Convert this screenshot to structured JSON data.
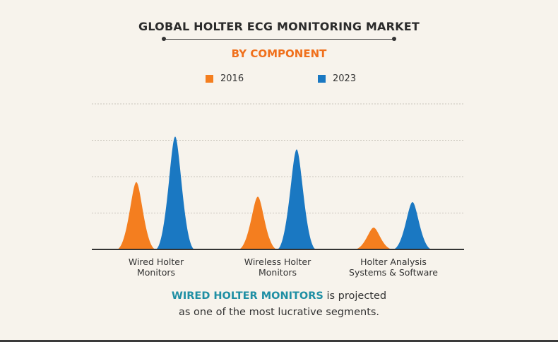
{
  "title": "GLOBAL HOLTER ECG MONITORING MARKET",
  "subtitle": "BY COMPONENT",
  "footer": {
    "highlight": "WIRED HOLTER MONITORS",
    "line1_rest": " is projected",
    "line2": "as one of the most lucrative segments."
  },
  "colors": {
    "orange": "#f47e1f",
    "blue": "#1a78c2",
    "highlight": "#1f8fa4",
    "subtitle": "#f0701c"
  },
  "chart_data": {
    "type": "area",
    "categories": [
      [
        "Wired Holter",
        "Monitors"
      ],
      [
        "Wireless Holter",
        "Monitors"
      ],
      [
        "Holter Analysis",
        "Systems & Software"
      ]
    ],
    "series": [
      {
        "name": "2016",
        "color": "#f47e1f",
        "values": [
          1.85,
          1.45,
          0.6
        ]
      },
      {
        "name": "2023",
        "color": "#1a78c2",
        "values": [
          3.1,
          2.75,
          1.3
        ]
      }
    ],
    "ylim": [
      0,
      4
    ],
    "grid": true,
    "legend": "top-center"
  }
}
